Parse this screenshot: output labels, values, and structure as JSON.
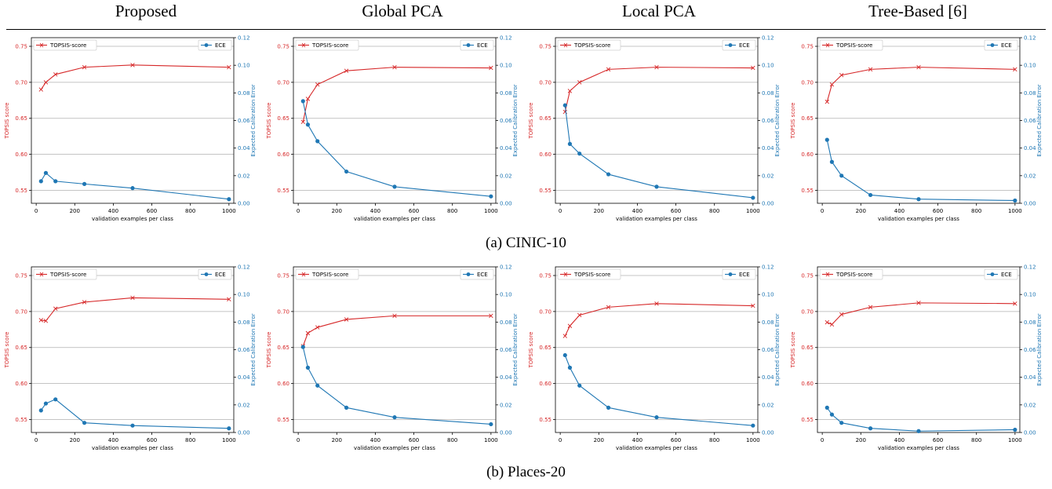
{
  "columns": [
    "Proposed",
    "Global PCA",
    "Local PCA",
    "Tree-Based [6]"
  ],
  "captions": [
    "(a) CINIC-10",
    "(b) Places-20"
  ],
  "colors": {
    "topsis": "#d62728",
    "ece": "#1f77b4"
  },
  "chart_data": [
    {
      "type": "line",
      "dataset": "CINIC-10",
      "method": "Proposed",
      "x": [
        25,
        50,
        100,
        250,
        500,
        1000
      ],
      "series": [
        {
          "name": "TOPSIS-score",
          "axis": "left",
          "marker": "x",
          "values": [
            0.69,
            0.7,
            0.711,
            0.721,
            0.724,
            0.721
          ]
        },
        {
          "name": "ECE",
          "axis": "right",
          "marker": "o",
          "values": [
            0.016,
            0.022,
            0.016,
            0.014,
            0.011,
            0.003
          ]
        }
      ],
      "xlabel": "validation examples per class",
      "ylabel": "TOPSIS score",
      "y2label": "Expected Calibration Error",
      "xlim": [
        -25,
        1025
      ],
      "ylim": [
        0.532,
        0.762
      ],
      "y2lim": [
        0,
        0.12
      ],
      "xticks": [
        0,
        200,
        400,
        600,
        800,
        1000
      ],
      "yticks": [
        0.55,
        0.6,
        0.65,
        0.7,
        0.75
      ],
      "y2ticks": [
        0.0,
        0.02,
        0.04,
        0.06,
        0.08,
        0.1,
        0.12
      ],
      "grid": true
    },
    {
      "type": "line",
      "dataset": "CINIC-10",
      "method": "Global PCA",
      "x": [
        25,
        50,
        100,
        250,
        500,
        1000
      ],
      "series": [
        {
          "name": "TOPSIS-score",
          "axis": "left",
          "marker": "x",
          "values": [
            0.645,
            0.677,
            0.697,
            0.716,
            0.721,
            0.72
          ]
        },
        {
          "name": "ECE",
          "axis": "right",
          "marker": "o",
          "values": [
            0.074,
            0.057,
            0.045,
            0.023,
            0.012,
            0.005
          ]
        }
      ],
      "xlabel": "validation examples per class",
      "ylabel": "TOPSIS score",
      "y2label": "Expected Calibration Error",
      "xlim": [
        -25,
        1025
      ],
      "ylim": [
        0.532,
        0.762
      ],
      "y2lim": [
        0,
        0.12
      ],
      "xticks": [
        0,
        200,
        400,
        600,
        800,
        1000
      ],
      "yticks": [
        0.55,
        0.6,
        0.65,
        0.7,
        0.75
      ],
      "y2ticks": [
        0.0,
        0.02,
        0.04,
        0.06,
        0.08,
        0.1,
        0.12
      ],
      "grid": true
    },
    {
      "type": "line",
      "dataset": "CINIC-10",
      "method": "Local PCA",
      "x": [
        25,
        50,
        100,
        250,
        500,
        1000
      ],
      "series": [
        {
          "name": "TOPSIS-score",
          "axis": "left",
          "marker": "x",
          "values": [
            0.659,
            0.688,
            0.7,
            0.718,
            0.721,
            0.72
          ]
        },
        {
          "name": "ECE",
          "axis": "right",
          "marker": "o",
          "values": [
            0.071,
            0.043,
            0.036,
            0.021,
            0.012,
            0.004
          ]
        }
      ],
      "xlabel": "validation examples per class",
      "ylabel": "TOPSIS score",
      "y2label": "Expected Calibration Error",
      "xlim": [
        -25,
        1025
      ],
      "ylim": [
        0.532,
        0.762
      ],
      "y2lim": [
        0,
        0.12
      ],
      "xticks": [
        0,
        200,
        400,
        600,
        800,
        1000
      ],
      "yticks": [
        0.55,
        0.6,
        0.65,
        0.7,
        0.75
      ],
      "y2ticks": [
        0.0,
        0.02,
        0.04,
        0.06,
        0.08,
        0.1,
        0.12
      ],
      "grid": true
    },
    {
      "type": "line",
      "dataset": "CINIC-10",
      "method": "Tree-Based [6]",
      "x": [
        25,
        50,
        100,
        250,
        500,
        1000
      ],
      "series": [
        {
          "name": "TOPSIS-score",
          "axis": "left",
          "marker": "x",
          "values": [
            0.673,
            0.697,
            0.71,
            0.718,
            0.721,
            0.718
          ]
        },
        {
          "name": "ECE",
          "axis": "right",
          "marker": "o",
          "values": [
            0.046,
            0.03,
            0.02,
            0.006,
            0.003,
            0.002
          ]
        }
      ],
      "xlabel": "validation examples per class",
      "ylabel": "TOPSIS score",
      "y2label": "Expected Calibration Error",
      "xlim": [
        -25,
        1025
      ],
      "ylim": [
        0.532,
        0.762
      ],
      "y2lim": [
        0,
        0.12
      ],
      "xticks": [
        0,
        200,
        400,
        600,
        800,
        1000
      ],
      "yticks": [
        0.55,
        0.6,
        0.65,
        0.7,
        0.75
      ],
      "y2ticks": [
        0.0,
        0.02,
        0.04,
        0.06,
        0.08,
        0.1,
        0.12
      ],
      "grid": true
    },
    {
      "type": "line",
      "dataset": "Places-20",
      "method": "Proposed",
      "x": [
        25,
        50,
        100,
        250,
        500,
        1000
      ],
      "series": [
        {
          "name": "TOPSIS-score",
          "axis": "left",
          "marker": "x",
          "values": [
            0.688,
            0.687,
            0.704,
            0.713,
            0.719,
            0.717
          ]
        },
        {
          "name": "ECE",
          "axis": "right",
          "marker": "o",
          "values": [
            0.016,
            0.021,
            0.024,
            0.007,
            0.005,
            0.003
          ]
        }
      ],
      "xlabel": "validation examples per class",
      "ylabel": "TOPSIS score",
      "y2label": "Expected Calibration Error",
      "xlim": [
        -25,
        1025
      ],
      "ylim": [
        0.532,
        0.762
      ],
      "y2lim": [
        0,
        0.12
      ],
      "xticks": [
        0,
        200,
        400,
        600,
        800,
        1000
      ],
      "yticks": [
        0.55,
        0.6,
        0.65,
        0.7,
        0.75
      ],
      "y2ticks": [
        0.0,
        0.02,
        0.04,
        0.06,
        0.08,
        0.1,
        0.12
      ],
      "grid": true
    },
    {
      "type": "line",
      "dataset": "Places-20",
      "method": "Global PCA",
      "x": [
        25,
        50,
        100,
        250,
        500,
        1000
      ],
      "series": [
        {
          "name": "TOPSIS-score",
          "axis": "left",
          "marker": "x",
          "values": [
            0.652,
            0.67,
            0.678,
            0.689,
            0.694,
            0.694
          ]
        },
        {
          "name": "ECE",
          "axis": "right",
          "marker": "o",
          "values": [
            0.062,
            0.047,
            0.034,
            0.018,
            0.011,
            0.006
          ]
        }
      ],
      "xlabel": "validation examples per class",
      "ylabel": "TOPSIS score",
      "y2label": "Expected Calibration Error",
      "xlim": [
        -25,
        1025
      ],
      "ylim": [
        0.532,
        0.762
      ],
      "y2lim": [
        0,
        0.12
      ],
      "xticks": [
        0,
        200,
        400,
        600,
        800,
        1000
      ],
      "yticks": [
        0.55,
        0.6,
        0.65,
        0.7,
        0.75
      ],
      "y2ticks": [
        0.0,
        0.02,
        0.04,
        0.06,
        0.08,
        0.1,
        0.12
      ],
      "grid": true
    },
    {
      "type": "line",
      "dataset": "Places-20",
      "method": "Local PCA",
      "x": [
        25,
        50,
        100,
        250,
        500,
        1000
      ],
      "series": [
        {
          "name": "TOPSIS-score",
          "axis": "left",
          "marker": "x",
          "values": [
            0.666,
            0.68,
            0.695,
            0.706,
            0.711,
            0.708
          ]
        },
        {
          "name": "ECE",
          "axis": "right",
          "marker": "o",
          "values": [
            0.056,
            0.047,
            0.034,
            0.018,
            0.011,
            0.005
          ]
        }
      ],
      "xlabel": "validation examples per class",
      "ylabel": "TOPSIS score",
      "y2label": "Expected Calibration Error",
      "xlim": [
        -25,
        1025
      ],
      "ylim": [
        0.532,
        0.762
      ],
      "y2lim": [
        0,
        0.12
      ],
      "xticks": [
        0,
        200,
        400,
        600,
        800,
        1000
      ],
      "yticks": [
        0.55,
        0.6,
        0.65,
        0.7,
        0.75
      ],
      "y2ticks": [
        0.0,
        0.02,
        0.04,
        0.06,
        0.08,
        0.1,
        0.12
      ],
      "grid": true
    },
    {
      "type": "line",
      "dataset": "Places-20",
      "method": "Tree-Based [6]",
      "x": [
        25,
        50,
        100,
        250,
        500,
        1000
      ],
      "series": [
        {
          "name": "TOPSIS-score",
          "axis": "left",
          "marker": "x",
          "values": [
            0.685,
            0.682,
            0.696,
            0.706,
            0.712,
            0.711
          ]
        },
        {
          "name": "ECE",
          "axis": "right",
          "marker": "o",
          "values": [
            0.018,
            0.013,
            0.007,
            0.003,
            0.001,
            0.002
          ]
        }
      ],
      "xlabel": "validation examples per class",
      "ylabel": "TOPSIS score",
      "y2label": "Expected Calibration Error",
      "xlim": [
        -25,
        1025
      ],
      "ylim": [
        0.532,
        0.762
      ],
      "y2lim": [
        0,
        0.12
      ],
      "xticks": [
        0,
        200,
        400,
        600,
        800,
        1000
      ],
      "yticks": [
        0.55,
        0.6,
        0.65,
        0.7,
        0.75
      ],
      "y2ticks": [
        0.0,
        0.02,
        0.04,
        0.06,
        0.08,
        0.1,
        0.12
      ],
      "grid": true
    }
  ]
}
